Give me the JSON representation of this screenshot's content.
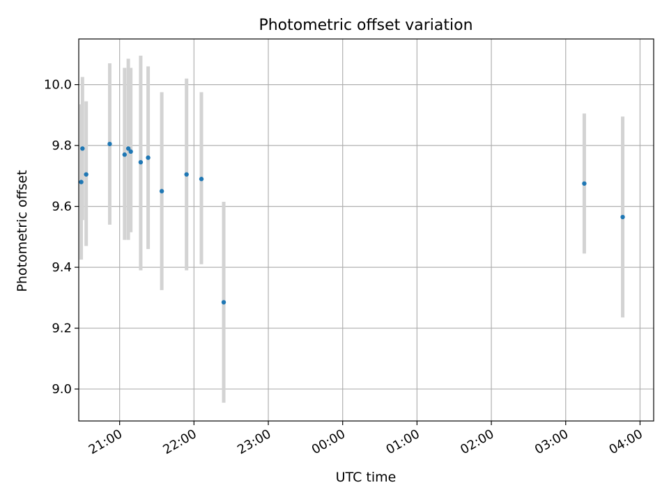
{
  "chart_data": {
    "type": "scatter",
    "title": "Photometric offset variation",
    "xlabel": "UTC time",
    "ylabel": "Photometric offset",
    "x_unit": "time of day (UTC), HH:MM",
    "xlim": [
      "20:27",
      "04:11"
    ],
    "ylim": [
      8.895,
      10.15
    ],
    "grid": true,
    "x_ticks": [
      "21:00",
      "22:00",
      "23:00",
      "00:00",
      "01:00",
      "02:00",
      "03:00",
      "04:00"
    ],
    "y_ticks": [
      "9.0",
      "9.2",
      "9.4",
      "9.6",
      "9.8",
      "10.0"
    ],
    "colors": {
      "marker": "#1f77b4",
      "errorbar": "#d3d3d3",
      "grid": "#b0b0b0"
    },
    "series": [
      {
        "points": [
          {
            "t": "20:29",
            "y": 9.68,
            "ylo": 9.425,
            "yhi": 9.935
          },
          {
            "t": "20:30",
            "y": 9.79,
            "ylo": 9.555,
            "yhi": 10.025
          },
          {
            "t": "20:33",
            "y": 9.705,
            "ylo": 9.47,
            "yhi": 9.945
          },
          {
            "t": "20:52",
            "y": 9.805,
            "ylo": 9.54,
            "yhi": 10.07
          },
          {
            "t": "21:04",
            "y": 9.77,
            "ylo": 9.49,
            "yhi": 10.055
          },
          {
            "t": "21:07",
            "y": 9.79,
            "ylo": 9.49,
            "yhi": 10.085
          },
          {
            "t": "21:09",
            "y": 9.78,
            "ylo": 9.515,
            "yhi": 10.055
          },
          {
            "t": "21:17",
            "y": 9.745,
            "ylo": 9.39,
            "yhi": 10.095
          },
          {
            "t": "21:23",
            "y": 9.76,
            "ylo": 9.46,
            "yhi": 10.06
          },
          {
            "t": "21:34",
            "y": 9.65,
            "ylo": 9.325,
            "yhi": 9.975
          },
          {
            "t": "21:54",
            "y": 9.705,
            "ylo": 9.39,
            "yhi": 10.02
          },
          {
            "t": "22:06",
            "y": 9.69,
            "ylo": 9.41,
            "yhi": 9.975
          },
          {
            "t": "22:24",
            "y": 9.285,
            "ylo": 8.955,
            "yhi": 9.615
          },
          {
            "t": "03:15",
            "y": 9.675,
            "ylo": 9.445,
            "yhi": 9.905
          },
          {
            "t": "03:46",
            "y": 9.565,
            "ylo": 9.235,
            "yhi": 9.895
          }
        ]
      }
    ]
  }
}
